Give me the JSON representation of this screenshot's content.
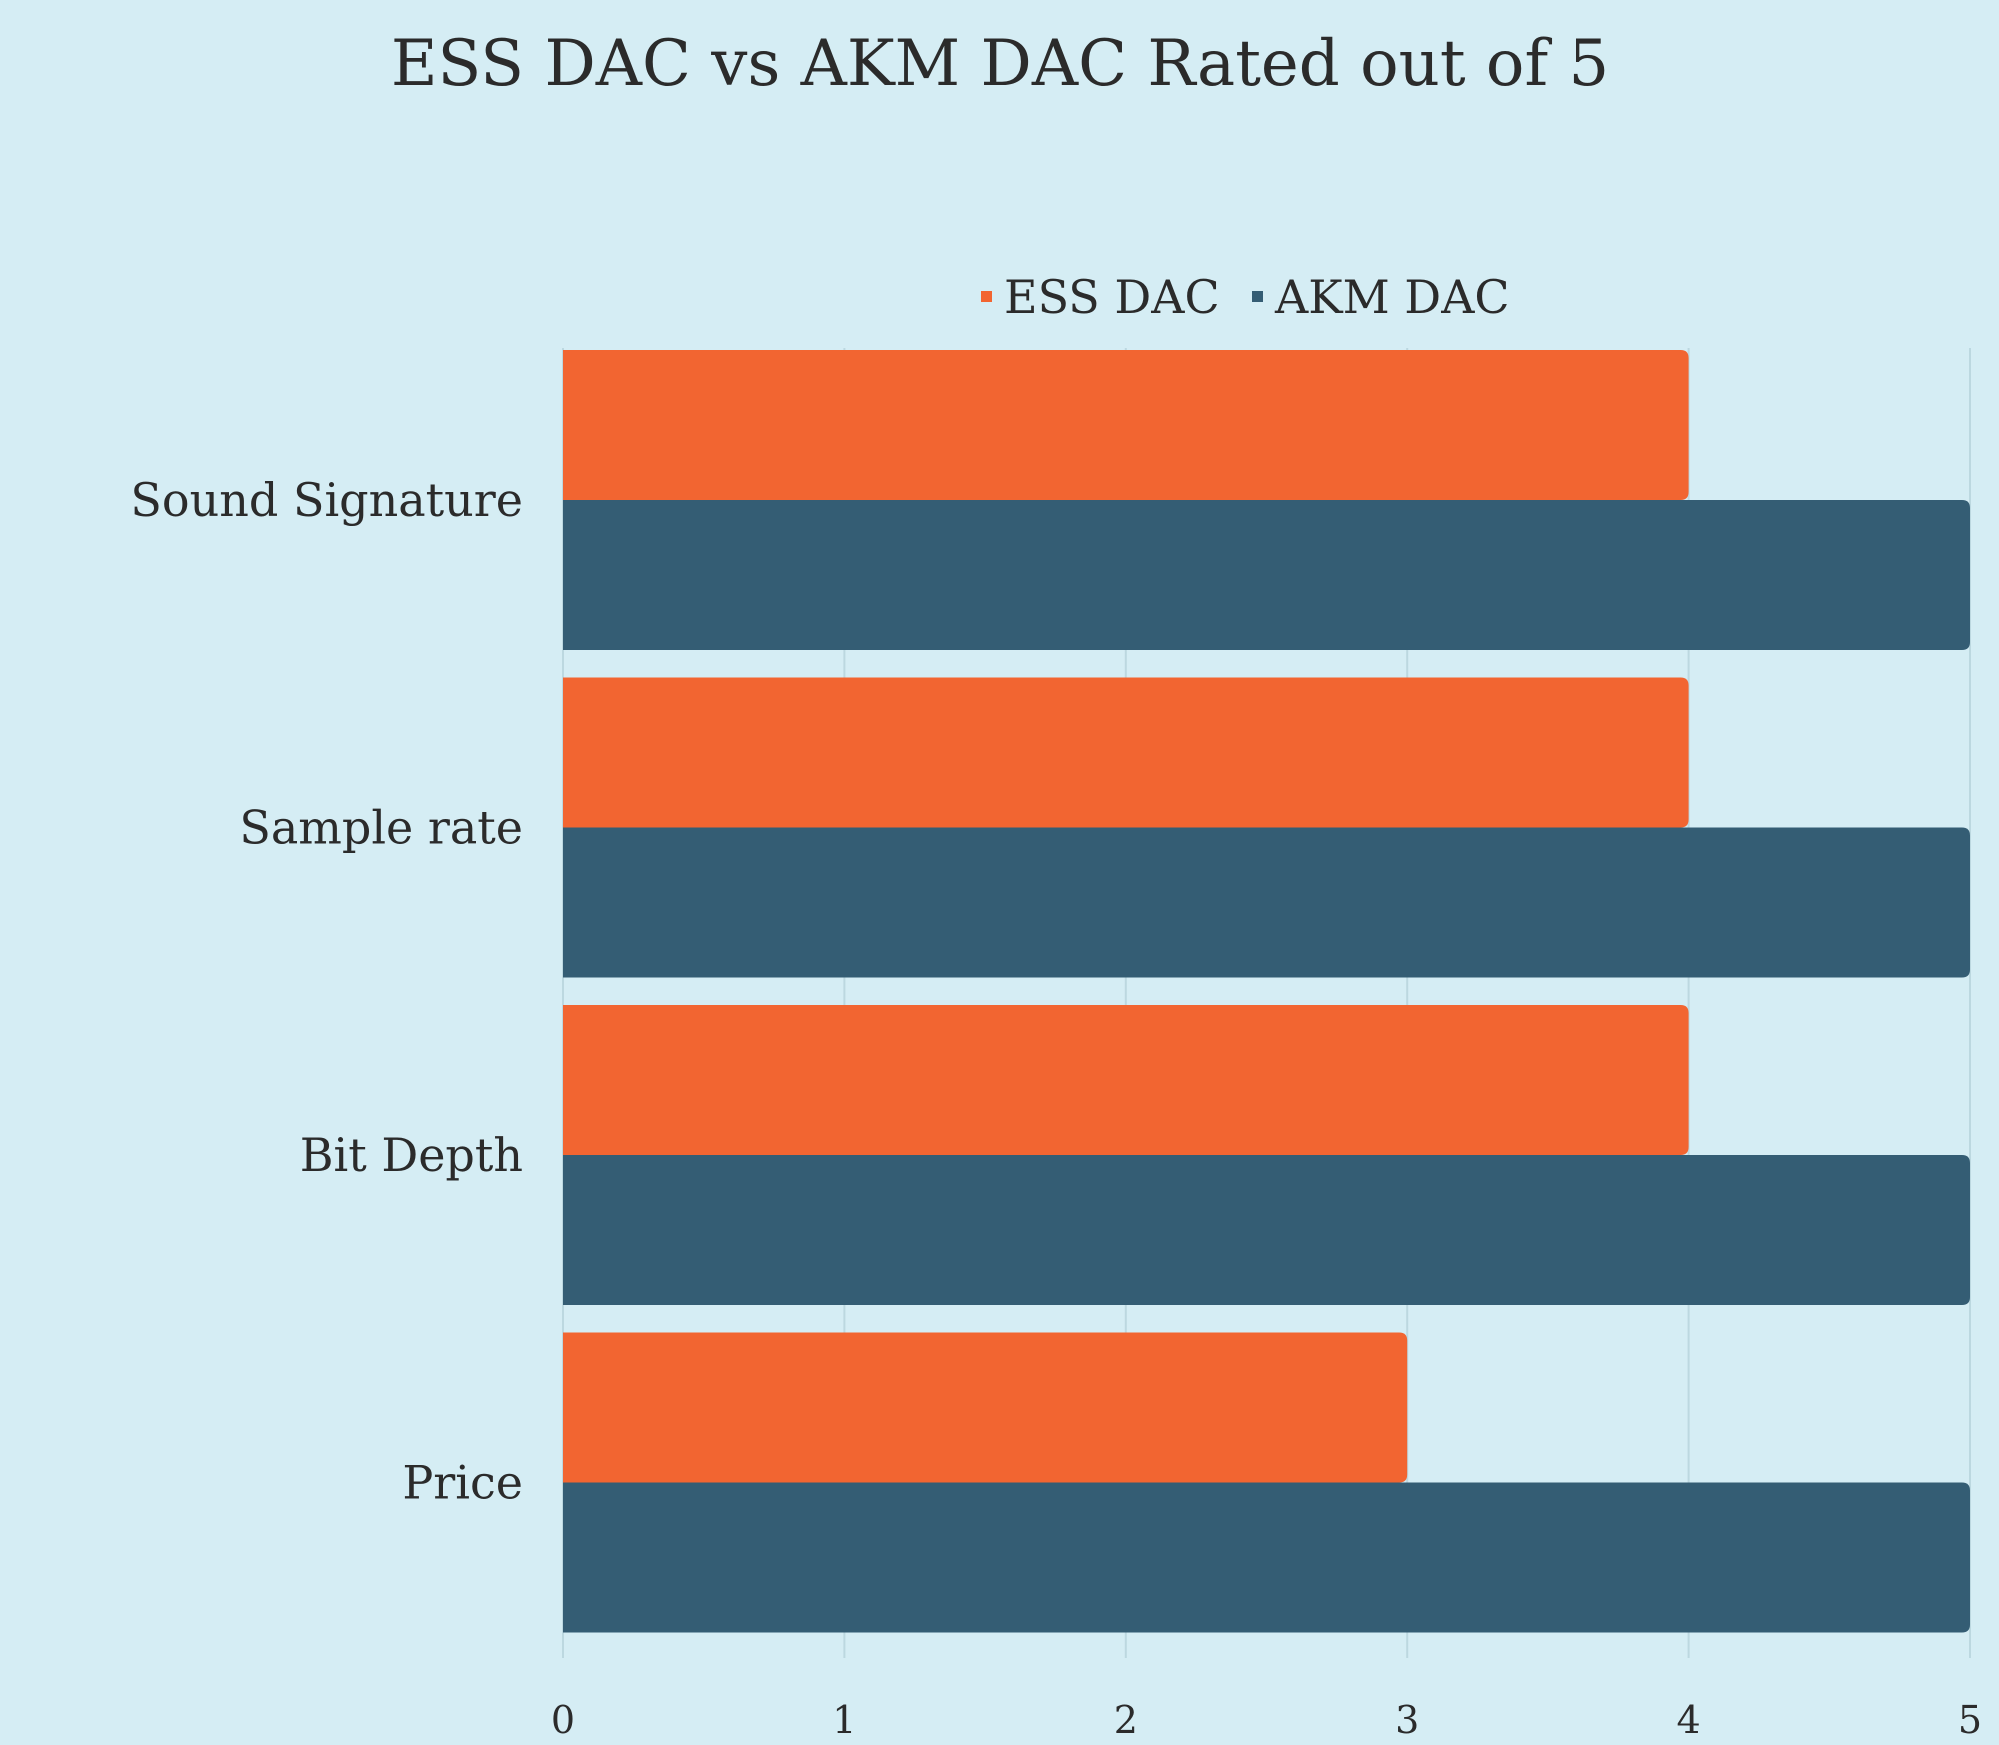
{
  "colors": {
    "background": "#d5edf4",
    "ess": "#f26531",
    "akm": "#345d74",
    "grid": "#bcd8e0",
    "text": "#2b2b2b"
  },
  "chart_data": {
    "type": "bar",
    "orientation": "horizontal",
    "title": "ESS DAC vs AKM DAC Rated out of 5",
    "categories": [
      "Sound Signature",
      "Sample rate",
      "Bit Depth",
      "Price"
    ],
    "series": [
      {
        "name": "ESS DAC",
        "values": [
          4,
          4,
          4,
          3
        ],
        "color": "#f26531"
      },
      {
        "name": "AKM DAC",
        "values": [
          5,
          5,
          5,
          5
        ],
        "color": "#345d74"
      }
    ],
    "xlim": [
      0,
      5
    ],
    "xticks": [
      "0",
      "1",
      "2",
      "3",
      "4",
      "5"
    ],
    "xlabel": "",
    "ylabel": "",
    "grid": "vertical",
    "legend_position": "top"
  }
}
